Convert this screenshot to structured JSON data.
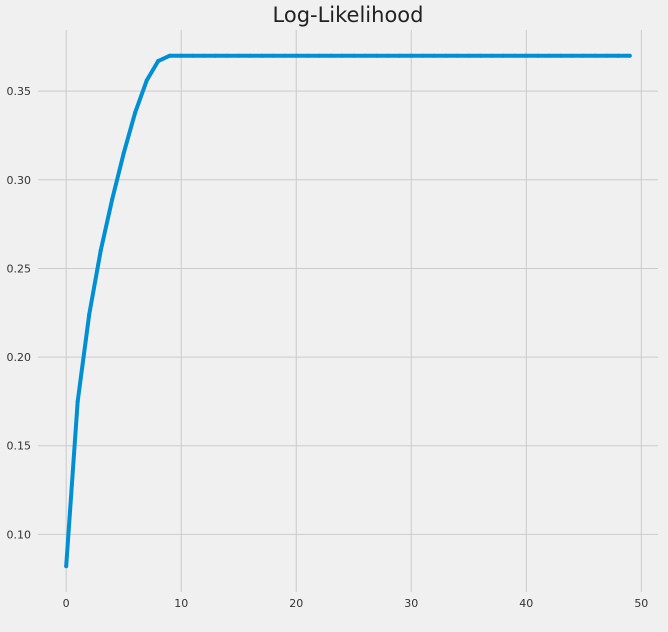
{
  "chart_data": {
    "type": "line",
    "title": "Log-Likelihood",
    "xlabel": "",
    "ylabel": "",
    "xlim": [
      -2.45,
      51.45
    ],
    "ylim": [
      0.0675,
      0.3845
    ],
    "xticks": [
      0,
      10,
      20,
      30,
      40,
      50
    ],
    "yticks": [
      0.1,
      0.15,
      0.2,
      0.25,
      0.3,
      0.35
    ],
    "xtick_labels": [
      "0",
      "10",
      "20",
      "30",
      "40",
      "50"
    ],
    "ytick_labels": [
      "0.10",
      "0.15",
      "0.20",
      "0.25",
      "0.30",
      "0.35"
    ],
    "grid": true,
    "legend": "none",
    "background_color": "#f0f0f0",
    "grid_color": "#cbcbcb",
    "series": [
      {
        "color": "#008fd5",
        "x": [
          0,
          1,
          2,
          3,
          4,
          5,
          6,
          7,
          8,
          9,
          10,
          11,
          12,
          13,
          14,
          15,
          16,
          17,
          18,
          19,
          20,
          21,
          22,
          23,
          24,
          25,
          26,
          27,
          28,
          29,
          30,
          31,
          32,
          33,
          34,
          35,
          36,
          37,
          38,
          39,
          40,
          41,
          42,
          43,
          44,
          45,
          46,
          47,
          48,
          49
        ],
        "values": [
          0.082,
          0.175,
          0.224,
          0.26,
          0.289,
          0.315,
          0.338,
          0.356,
          0.367,
          0.37,
          0.37,
          0.37,
          0.37,
          0.37,
          0.37,
          0.37,
          0.37,
          0.37,
          0.37,
          0.37,
          0.37,
          0.37,
          0.37,
          0.37,
          0.37,
          0.37,
          0.37,
          0.37,
          0.37,
          0.37,
          0.37,
          0.37,
          0.37,
          0.37,
          0.37,
          0.37,
          0.37,
          0.37,
          0.37,
          0.37,
          0.37,
          0.37,
          0.37,
          0.37,
          0.37,
          0.37,
          0.37,
          0.37,
          0.37,
          0.37
        ]
      }
    ]
  }
}
